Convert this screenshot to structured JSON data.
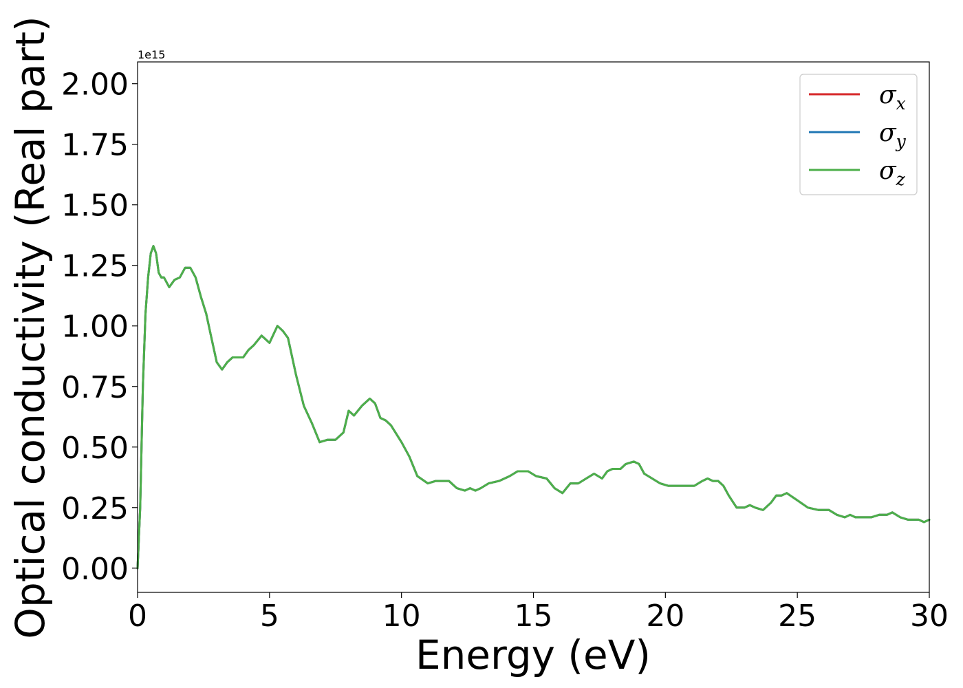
{
  "chart_data": {
    "type": "line",
    "xlabel": "Energy (eV)",
    "ylabel": "Optical conductivity (Real part)",
    "y_offset_label": "1e15",
    "y_scale_factor": 1000000000000000.0,
    "xlim": [
      0,
      30
    ],
    "ylim": [
      -0.1,
      2.09
    ],
    "xticks": [
      0,
      5,
      10,
      15,
      20,
      25,
      30
    ],
    "xtick_labels": [
      "0",
      "5",
      "10",
      "15",
      "20",
      "25",
      "30"
    ],
    "yticks": [
      0.0,
      0.25,
      0.5,
      0.75,
      1.0,
      1.25,
      1.5,
      1.75,
      2.0
    ],
    "ytick_labels": [
      "0.00",
      "0.25",
      "0.50",
      "0.75",
      "1.00",
      "1.25",
      "1.50",
      "1.75",
      "2.00"
    ],
    "grid": false,
    "legend_position": "top-right",
    "x": [
      0,
      0.1,
      0.2,
      0.3,
      0.4,
      0.5,
      0.6,
      0.7,
      0.8,
      0.9,
      1.0,
      1.2,
      1.4,
      1.6,
      1.8,
      2.0,
      2.2,
      2.4,
      2.6,
      2.8,
      3.0,
      3.2,
      3.4,
      3.6,
      3.8,
      4.0,
      4.2,
      4.4,
      4.7,
      5.0,
      5.3,
      5.5,
      5.7,
      6.0,
      6.3,
      6.6,
      6.9,
      7.2,
      7.5,
      7.8,
      8.0,
      8.2,
      8.5,
      8.8,
      9.0,
      9.2,
      9.4,
      9.6,
      10.0,
      10.3,
      10.6,
      11.0,
      11.3,
      11.8,
      12.1,
      12.4,
      12.6,
      12.8,
      13.0,
      13.3,
      13.7,
      14.1,
      14.4,
      14.8,
      15.1,
      15.5,
      15.8,
      16.1,
      16.4,
      16.7,
      17.0,
      17.3,
      17.6,
      17.8,
      18.0,
      18.3,
      18.5,
      18.8,
      19.0,
      19.2,
      19.5,
      19.8,
      20.1,
      20.4,
      20.8,
      21.1,
      21.4,
      21.6,
      21.8,
      22.0,
      22.2,
      22.4,
      22.7,
      23.0,
      23.2,
      23.4,
      23.7,
      24.0,
      24.2,
      24.4,
      24.6,
      25.0,
      25.4,
      25.8,
      26.2,
      26.5,
      26.8,
      27.0,
      27.2,
      27.5,
      27.8,
      28.1,
      28.4,
      28.6,
      28.9,
      29.2,
      29.6,
      29.8,
      30.0
    ],
    "series": [
      {
        "name": "σx",
        "color": "#d62728",
        "y": [
          0.0,
          0.25,
          0.75,
          1.05,
          1.2,
          1.3,
          1.33,
          1.3,
          1.22,
          1.2,
          1.2,
          1.16,
          1.19,
          1.2,
          1.24,
          1.24,
          1.2,
          1.12,
          1.05,
          0.95,
          0.85,
          0.82,
          0.85,
          0.87,
          0.87,
          0.87,
          0.9,
          0.92,
          0.96,
          0.93,
          1.0,
          0.98,
          0.95,
          0.8,
          0.67,
          0.6,
          0.52,
          0.53,
          0.53,
          0.56,
          0.65,
          0.63,
          0.67,
          0.7,
          0.68,
          0.62,
          0.61,
          0.59,
          0.52,
          0.46,
          0.38,
          0.35,
          0.36,
          0.36,
          0.33,
          0.32,
          0.33,
          0.32,
          0.33,
          0.35,
          0.36,
          0.38,
          0.4,
          0.4,
          0.38,
          0.37,
          0.33,
          0.31,
          0.35,
          0.35,
          0.37,
          0.39,
          0.37,
          0.4,
          0.41,
          0.41,
          0.43,
          0.44,
          0.43,
          0.39,
          0.37,
          0.35,
          0.34,
          0.34,
          0.34,
          0.34,
          0.36,
          0.37,
          0.36,
          0.36,
          0.34,
          0.3,
          0.25,
          0.25,
          0.26,
          0.25,
          0.24,
          0.27,
          0.3,
          0.3,
          0.31,
          0.28,
          0.25,
          0.24,
          0.24,
          0.22,
          0.21,
          0.22,
          0.21,
          0.21,
          0.21,
          0.22,
          0.22,
          0.23,
          0.21,
          0.2,
          0.2,
          0.19,
          0.2
        ]
      },
      {
        "name": "σy",
        "color": "#1f77b4",
        "y": [
          0.0,
          0.25,
          0.75,
          1.05,
          1.2,
          1.3,
          1.33,
          1.3,
          1.22,
          1.2,
          1.2,
          1.16,
          1.19,
          1.2,
          1.24,
          1.24,
          1.2,
          1.12,
          1.05,
          0.95,
          0.85,
          0.82,
          0.85,
          0.87,
          0.87,
          0.87,
          0.9,
          0.92,
          0.96,
          0.93,
          1.0,
          0.98,
          0.95,
          0.8,
          0.67,
          0.6,
          0.52,
          0.53,
          0.53,
          0.56,
          0.65,
          0.63,
          0.67,
          0.7,
          0.68,
          0.62,
          0.61,
          0.59,
          0.52,
          0.46,
          0.38,
          0.35,
          0.36,
          0.36,
          0.33,
          0.32,
          0.33,
          0.32,
          0.33,
          0.35,
          0.36,
          0.38,
          0.4,
          0.4,
          0.38,
          0.37,
          0.33,
          0.31,
          0.35,
          0.35,
          0.37,
          0.39,
          0.37,
          0.4,
          0.41,
          0.41,
          0.43,
          0.44,
          0.43,
          0.39,
          0.37,
          0.35,
          0.34,
          0.34,
          0.34,
          0.34,
          0.36,
          0.37,
          0.36,
          0.36,
          0.34,
          0.3,
          0.25,
          0.25,
          0.26,
          0.25,
          0.24,
          0.27,
          0.3,
          0.3,
          0.31,
          0.28,
          0.25,
          0.24,
          0.24,
          0.22,
          0.21,
          0.22,
          0.21,
          0.21,
          0.21,
          0.22,
          0.22,
          0.23,
          0.21,
          0.2,
          0.2,
          0.19,
          0.2
        ]
      },
      {
        "name": "σz",
        "color": "#4daf4a",
        "y": [
          0.0,
          0.25,
          0.75,
          1.05,
          1.2,
          1.3,
          1.33,
          1.3,
          1.22,
          1.2,
          1.2,
          1.16,
          1.19,
          1.2,
          1.24,
          1.24,
          1.2,
          1.12,
          1.05,
          0.95,
          0.85,
          0.82,
          0.85,
          0.87,
          0.87,
          0.87,
          0.9,
          0.92,
          0.96,
          0.93,
          1.0,
          0.98,
          0.95,
          0.8,
          0.67,
          0.6,
          0.52,
          0.53,
          0.53,
          0.56,
          0.65,
          0.63,
          0.67,
          0.7,
          0.68,
          0.62,
          0.61,
          0.59,
          0.52,
          0.46,
          0.38,
          0.35,
          0.36,
          0.36,
          0.33,
          0.32,
          0.33,
          0.32,
          0.33,
          0.35,
          0.36,
          0.38,
          0.4,
          0.4,
          0.38,
          0.37,
          0.33,
          0.31,
          0.35,
          0.35,
          0.37,
          0.39,
          0.37,
          0.4,
          0.41,
          0.41,
          0.43,
          0.44,
          0.43,
          0.39,
          0.37,
          0.35,
          0.34,
          0.34,
          0.34,
          0.34,
          0.36,
          0.37,
          0.36,
          0.36,
          0.34,
          0.3,
          0.25,
          0.25,
          0.26,
          0.25,
          0.24,
          0.27,
          0.3,
          0.3,
          0.31,
          0.28,
          0.25,
          0.24,
          0.24,
          0.22,
          0.21,
          0.22,
          0.21,
          0.21,
          0.21,
          0.22,
          0.22,
          0.23,
          0.21,
          0.2,
          0.2,
          0.19,
          0.2
        ]
      }
    ],
    "legend": [
      {
        "symbol": "σ",
        "sub": "x"
      },
      {
        "symbol": "σ",
        "sub": "y"
      },
      {
        "symbol": "σ",
        "sub": "z"
      }
    ]
  }
}
